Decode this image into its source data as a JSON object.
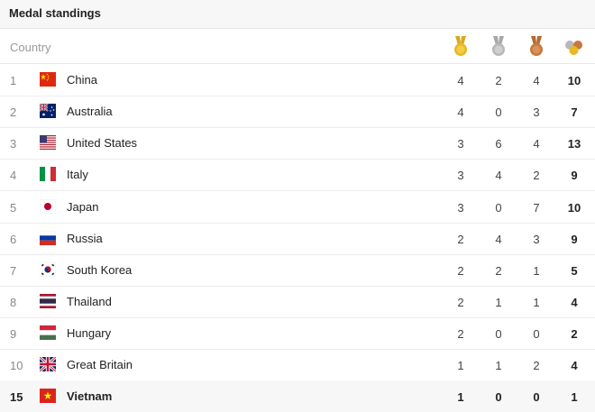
{
  "header": {
    "title": "Medal standings"
  },
  "columns": {
    "country": "Country",
    "gold_icon": "gold-medal-icon",
    "silver_icon": "silver-medal-icon",
    "bronze_icon": "bronze-medal-icon",
    "total_icon": "total-medals-icon"
  },
  "colors": {
    "gold": "#e8b923",
    "silver": "#b8b8b8",
    "bronze": "#c8783c",
    "header_bg": "#f7f7f7"
  },
  "rows": [
    {
      "rank": "1",
      "country": "China",
      "flag": "china-flag-icon",
      "gold": "4",
      "silver": "2",
      "bronze": "4",
      "total": "10"
    },
    {
      "rank": "2",
      "country": "Australia",
      "flag": "australia-flag-icon",
      "gold": "4",
      "silver": "0",
      "bronze": "3",
      "total": "7"
    },
    {
      "rank": "3",
      "country": "United States",
      "flag": "usa-flag-icon",
      "gold": "3",
      "silver": "6",
      "bronze": "4",
      "total": "13"
    },
    {
      "rank": "4",
      "country": "Italy",
      "flag": "italy-flag-icon",
      "gold": "3",
      "silver": "4",
      "bronze": "2",
      "total": "9"
    },
    {
      "rank": "5",
      "country": "Japan",
      "flag": "japan-flag-icon",
      "gold": "3",
      "silver": "0",
      "bronze": "7",
      "total": "10"
    },
    {
      "rank": "6",
      "country": "Russia",
      "flag": "russia-flag-icon",
      "gold": "2",
      "silver": "4",
      "bronze": "3",
      "total": "9"
    },
    {
      "rank": "7",
      "country": "South Korea",
      "flag": "south-korea-flag-icon",
      "gold": "2",
      "silver": "2",
      "bronze": "1",
      "total": "5"
    },
    {
      "rank": "8",
      "country": "Thailand",
      "flag": "thailand-flag-icon",
      "gold": "2",
      "silver": "1",
      "bronze": "1",
      "total": "4"
    },
    {
      "rank": "9",
      "country": "Hungary",
      "flag": "hungary-flag-icon",
      "gold": "2",
      "silver": "0",
      "bronze": "0",
      "total": "2"
    },
    {
      "rank": "10",
      "country": "Great Britain",
      "flag": "great-britain-flag-icon",
      "gold": "1",
      "silver": "1",
      "bronze": "2",
      "total": "4"
    },
    {
      "rank": "15",
      "country": "Vietnam",
      "flag": "vietnam-flag-icon",
      "gold": "1",
      "silver": "0",
      "bronze": "0",
      "total": "1"
    }
  ]
}
